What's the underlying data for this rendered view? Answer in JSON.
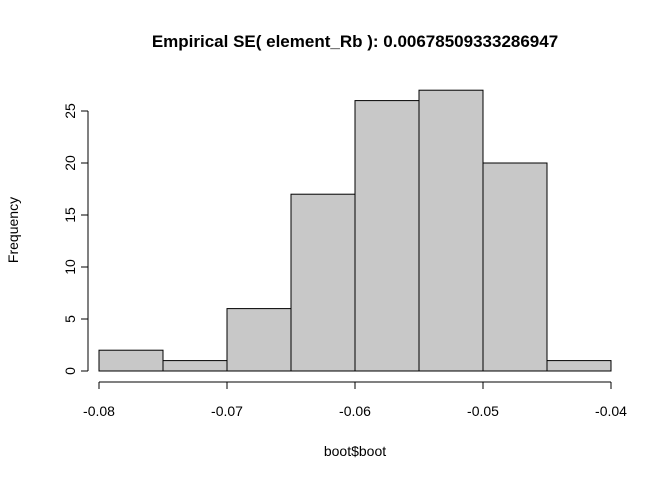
{
  "chart_data": {
    "type": "bar",
    "subtype": "histogram",
    "title": "Empirical SE( element_Rb ):  0.00678509333286947",
    "xlabel": "boot$boot",
    "ylabel": "Frequency",
    "bins": [
      {
        "from": -0.08,
        "to": -0.075,
        "count": 2
      },
      {
        "from": -0.075,
        "to": -0.07,
        "count": 1
      },
      {
        "from": -0.07,
        "to": -0.065,
        "count": 6
      },
      {
        "from": -0.065,
        "to": -0.06,
        "count": 17
      },
      {
        "from": -0.06,
        "to": -0.055,
        "count": 26
      },
      {
        "from": -0.055,
        "to": -0.05,
        "count": 27
      },
      {
        "from": -0.05,
        "to": -0.045,
        "count": 20
      },
      {
        "from": -0.045,
        "to": -0.04,
        "count": 1
      }
    ],
    "xlim": [
      -0.08,
      -0.04
    ],
    "ylim": [
      0,
      27
    ],
    "xticks": [
      -0.08,
      -0.07,
      -0.06,
      -0.05,
      -0.04
    ],
    "xtick_labels": [
      "-0.08",
      "-0.07",
      "-0.06",
      "-0.05",
      "-0.04"
    ],
    "yticks": [
      0,
      5,
      10,
      15,
      20,
      25
    ],
    "ytick_labels": [
      "0",
      "5",
      "10",
      "15",
      "20",
      "25"
    ],
    "bar_fill": "#c8c8c8",
    "bar_stroke": "#000000",
    "grid": false,
    "legend": "none"
  }
}
